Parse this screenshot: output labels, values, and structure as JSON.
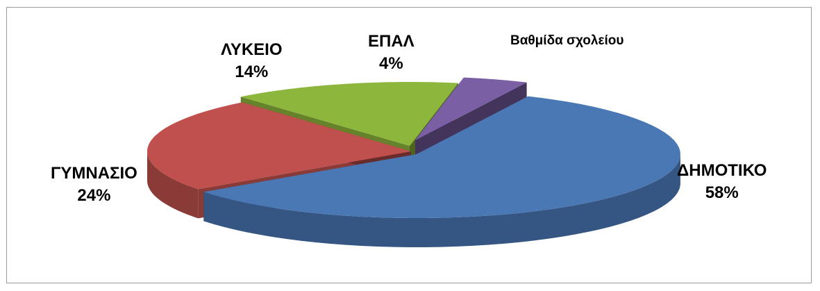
{
  "chart_data": {
    "type": "pie",
    "title": "Βαθμίδα σχολείου",
    "categories": [
      "ΔΗΜΟΤΙΚΟ",
      "ΓΥΜΝΑΣΙΟ",
      "ΛΥΚΕΙΟ",
      "ΕΠΑΛ"
    ],
    "values": [
      58,
      24,
      14,
      4
    ],
    "value_labels": [
      "58%",
      "24%",
      "14%",
      "4%"
    ],
    "three_d": true,
    "exploded": true,
    "legend": "none",
    "colors": [
      "#4a78b4",
      "#c0504d",
      "#8db63c",
      "#7a5fa5"
    ]
  }
}
